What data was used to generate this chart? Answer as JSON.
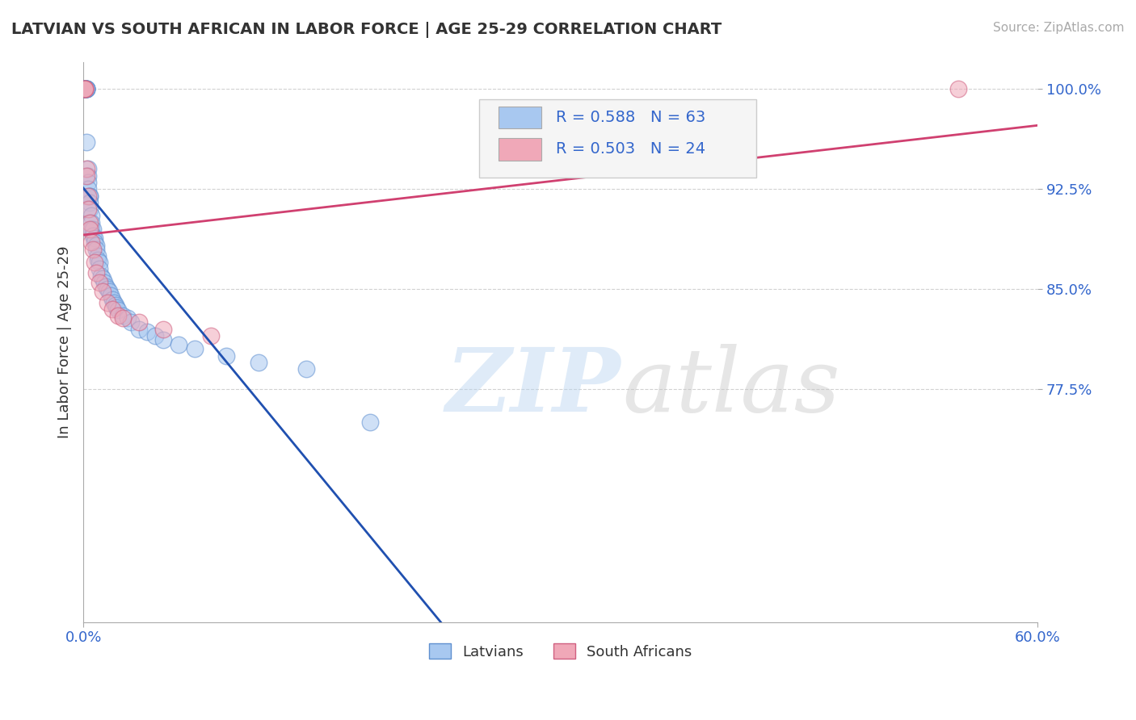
{
  "title": "LATVIAN VS SOUTH AFRICAN IN LABOR FORCE | AGE 25-29 CORRELATION CHART",
  "source": "Source: ZipAtlas.com",
  "ylabel": "In Labor Force | Age 25-29",
  "x_min": 0.0,
  "x_max": 0.6,
  "y_min": 0.6,
  "y_max": 1.02,
  "y_ticks": [
    0.775,
    0.85,
    0.925,
    1.0
  ],
  "y_tick_labels": [
    "77.5%",
    "85.0%",
    "92.5%",
    "100.0%"
  ],
  "x_tick_labels": [
    "0.0%",
    "60.0%"
  ],
  "latvian_face_color": "#a8c8f0",
  "latvian_edge_color": "#6090d0",
  "sa_face_color": "#f0a8b8",
  "sa_edge_color": "#d06080",
  "latvian_line_color": "#2050b0",
  "sa_line_color": "#d04070",
  "legend_latvian_label": "Latvians",
  "legend_sa_label": "South Africans",
  "R_latvian": 0.588,
  "N_latvian": 63,
  "R_sa": 0.503,
  "N_sa": 24,
  "background_color": "#ffffff",
  "grid_color": "#cccccc",
  "latvian_x": [
    0.001,
    0.001,
    0.001,
    0.001,
    0.001,
    0.001,
    0.001,
    0.001,
    0.001,
    0.001,
    0.002,
    0.002,
    0.002,
    0.002,
    0.002,
    0.002,
    0.002,
    0.003,
    0.003,
    0.003,
    0.003,
    0.004,
    0.004,
    0.004,
    0.004,
    0.005,
    0.005,
    0.005,
    0.006,
    0.006,
    0.007,
    0.007,
    0.008,
    0.008,
    0.009,
    0.009,
    0.01,
    0.01,
    0.011,
    0.012,
    0.013,
    0.014,
    0.015,
    0.016,
    0.017,
    0.018,
    0.019,
    0.02,
    0.021,
    0.022,
    0.025,
    0.028,
    0.03,
    0.035,
    0.04,
    0.045,
    0.05,
    0.06,
    0.07,
    0.09,
    0.11,
    0.14,
    0.18
  ],
  "latvian_y": [
    1.0,
    1.0,
    1.0,
    1.0,
    1.0,
    1.0,
    1.0,
    1.0,
    1.0,
    1.0,
    1.0,
    1.0,
    1.0,
    1.0,
    1.0,
    1.0,
    0.96,
    0.94,
    0.935,
    0.93,
    0.925,
    0.92,
    0.92,
    0.915,
    0.91,
    0.905,
    0.9,
    0.895,
    0.895,
    0.89,
    0.888,
    0.885,
    0.883,
    0.88,
    0.875,
    0.872,
    0.87,
    0.865,
    0.86,
    0.858,
    0.855,
    0.852,
    0.85,
    0.848,
    0.845,
    0.842,
    0.84,
    0.838,
    0.836,
    0.834,
    0.83,
    0.828,
    0.825,
    0.82,
    0.818,
    0.815,
    0.812,
    0.808,
    0.805,
    0.8,
    0.795,
    0.79,
    0.75
  ],
  "sa_x": [
    0.001,
    0.001,
    0.001,
    0.001,
    0.002,
    0.002,
    0.003,
    0.003,
    0.004,
    0.004,
    0.005,
    0.006,
    0.007,
    0.008,
    0.01,
    0.012,
    0.015,
    0.018,
    0.022,
    0.025,
    0.035,
    0.05,
    0.08,
    0.55
  ],
  "sa_y": [
    1.0,
    1.0,
    1.0,
    1.0,
    0.94,
    0.935,
    0.92,
    0.91,
    0.9,
    0.895,
    0.885,
    0.88,
    0.87,
    0.862,
    0.855,
    0.848,
    0.84,
    0.835,
    0.83,
    0.828,
    0.825,
    0.82,
    0.815,
    1.0
  ]
}
